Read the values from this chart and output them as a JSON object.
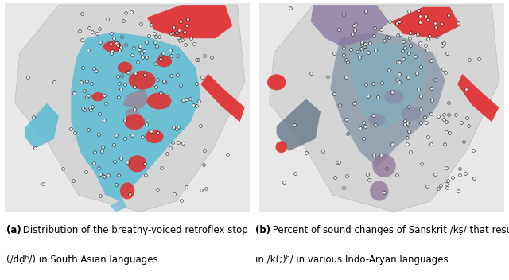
{
  "figsize": [
    6.4,
    3.52
  ],
  "dpi": 100,
  "bg_color": "#ffffff",
  "panel_bg": "#e8e8e8",
  "caption_a_bold": "(a)",
  "caption_a_text": " Distribution of the breathy-voiced retroflex stop",
  "caption_a_line2": "(/dḍʰ/) in South Asian languages.",
  "caption_b_bold": "(b)",
  "caption_b_text": " Percent of sound changes of Sanskrit /kṣ/ that result",
  "caption_b_line2": "in /k(;)ʰ/ in various Indo-Aryan languages.",
  "left_colors": {
    "red": "#e03030",
    "blue": "#5bbcd4",
    "mauve": "#9e7f8e",
    "light_gray": "#d0d0d0"
  },
  "right_colors": {
    "red": "#e03030",
    "blue": "#5bbcd4",
    "mauve_dark": "#7a7a9a",
    "mauve_light": "#a89aaa",
    "light_gray": "#d0d0d0"
  },
  "font_size_caption": 8.5
}
